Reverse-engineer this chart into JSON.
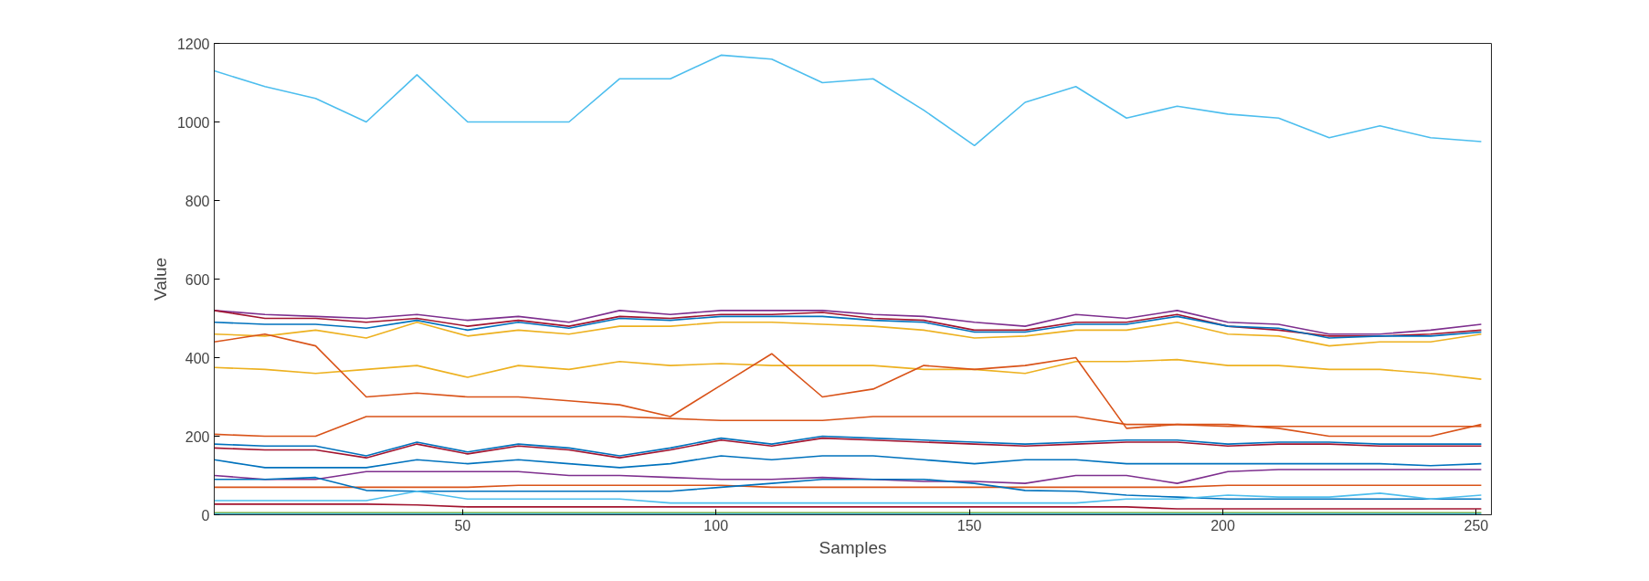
{
  "chart_data": {
    "type": "line",
    "xlabel": "Samples",
    "ylabel": "Value",
    "x": [
      1,
      11,
      21,
      31,
      41,
      51,
      61,
      71,
      81,
      91,
      101,
      111,
      121,
      131,
      141,
      151,
      161,
      171,
      181,
      191,
      201,
      211,
      221,
      231,
      241,
      251
    ],
    "xlim": [
      1,
      253
    ],
    "ylim": [
      0,
      1200
    ],
    "xticks": [
      50,
      100,
      150,
      200,
      250
    ],
    "yticks": [
      0,
      200,
      400,
      600,
      800,
      1000,
      1200
    ],
    "grid": false,
    "line_style": "solid",
    "marker": "none",
    "series": [
      {
        "color": "#4dbeee",
        "values": [
          1130,
          1090,
          1060,
          1000,
          1120,
          1000,
          1000,
          1000,
          1110,
          1110,
          1170,
          1160,
          1100,
          1110,
          1030,
          940,
          1050,
          1090,
          1010,
          1040,
          1020,
          1010,
          960,
          990,
          960,
          950
        ]
      },
      {
        "color": "#7e2f8e",
        "values": [
          520,
          510,
          505,
          500,
          510,
          495,
          505,
          490,
          520,
          510,
          520,
          520,
          520,
          510,
          505,
          490,
          480,
          510,
          500,
          520,
          490,
          485,
          460,
          460,
          470,
          485
        ]
      },
      {
        "color": "#a2142f",
        "values": [
          520,
          500,
          500,
          490,
          500,
          480,
          495,
          480,
          505,
          500,
          510,
          510,
          515,
          500,
          495,
          470,
          470,
          490,
          490,
          510,
          480,
          470,
          455,
          455,
          460,
          470
        ]
      },
      {
        "color": "#0072bd",
        "values": [
          490,
          485,
          485,
          475,
          495,
          470,
          490,
          475,
          500,
          495,
          505,
          505,
          505,
          495,
          490,
          465,
          465,
          485,
          485,
          505,
          480,
          475,
          450,
          455,
          455,
          465
        ]
      },
      {
        "color": "#edb120",
        "values": [
          460,
          455,
          470,
          450,
          490,
          455,
          470,
          460,
          480,
          480,
          490,
          490,
          485,
          480,
          470,
          450,
          455,
          470,
          470,
          490,
          460,
          455,
          430,
          440,
          440,
          460
        ]
      },
      {
        "color": "#edb120",
        "values": [
          375,
          370,
          360,
          370,
          380,
          350,
          380,
          370,
          390,
          380,
          385,
          380,
          380,
          380,
          370,
          370,
          360,
          390,
          390,
          395,
          380,
          380,
          370,
          370,
          360,
          345
        ]
      },
      {
        "color": "#d95319",
        "values": [
          440,
          460,
          430,
          300,
          310,
          300,
          300,
          290,
          280,
          250,
          330,
          410,
          300,
          320,
          380,
          370,
          380,
          400,
          220,
          230,
          230,
          220,
          200,
          200,
          200,
          230
        ]
      },
      {
        "color": "#d95319",
        "values": [
          205,
          200,
          200,
          250,
          250,
          250,
          250,
          250,
          250,
          245,
          240,
          240,
          240,
          250,
          250,
          250,
          250,
          250,
          230,
          230,
          225,
          225,
          225,
          225,
          225,
          225
        ]
      },
      {
        "color": "#0072bd",
        "values": [
          180,
          175,
          175,
          150,
          185,
          160,
          180,
          170,
          150,
          170,
          195,
          180,
          200,
          195,
          190,
          185,
          180,
          185,
          190,
          190,
          180,
          185,
          185,
          180,
          180,
          180
        ]
      },
      {
        "color": "#a2142f",
        "values": [
          170,
          165,
          165,
          145,
          180,
          155,
          175,
          165,
          145,
          165,
          190,
          175,
          195,
          190,
          185,
          180,
          175,
          180,
          185,
          185,
          175,
          180,
          180,
          175,
          175,
          175
        ]
      },
      {
        "color": "#0072bd",
        "values": [
          140,
          120,
          120,
          120,
          140,
          130,
          140,
          130,
          120,
          130,
          150,
          140,
          150,
          150,
          140,
          130,
          140,
          140,
          130,
          130,
          130,
          130,
          130,
          130,
          125,
          130
        ]
      },
      {
        "color": "#7e2f8e",
        "values": [
          100,
          90,
          90,
          110,
          110,
          110,
          110,
          100,
          100,
          95,
          90,
          90,
          95,
          90,
          85,
          85,
          80,
          100,
          100,
          80,
          110,
          115,
          115,
          115,
          115,
          115
        ]
      },
      {
        "color": "#d95319",
        "values": [
          70,
          70,
          70,
          70,
          70,
          70,
          75,
          75,
          75,
          75,
          75,
          70,
          70,
          70,
          70,
          70,
          70,
          70,
          70,
          70,
          75,
          75,
          75,
          75,
          75,
          75
        ]
      },
      {
        "color": "#0072bd",
        "values": [
          90,
          90,
          95,
          62,
          60,
          60,
          60,
          60,
          60,
          60,
          70,
          80,
          90,
          90,
          90,
          80,
          62,
          60,
          50,
          45,
          40,
          40,
          40,
          40,
          40,
          40
        ]
      },
      {
        "color": "#4dbeee",
        "values": [
          36,
          36,
          36,
          36,
          60,
          40,
          40,
          40,
          40,
          30,
          30,
          30,
          30,
          30,
          30,
          30,
          30,
          30,
          40,
          40,
          50,
          45,
          45,
          55,
          40,
          50
        ]
      },
      {
        "color": "#a2142f",
        "values": [
          27,
          27,
          27,
          27,
          25,
          20,
          20,
          20,
          20,
          20,
          20,
          20,
          20,
          20,
          20,
          20,
          20,
          20,
          20,
          15,
          15,
          15,
          15,
          15,
          15,
          15
        ]
      },
      {
        "color": "#77ac30",
        "values": [
          5,
          5,
          5,
          5,
          5,
          5,
          5,
          5,
          5,
          5,
          5,
          5,
          5,
          5,
          5,
          5,
          5,
          5,
          5,
          5,
          5,
          5,
          5,
          5,
          5,
          5
        ]
      },
      {
        "color": "#4dbeee",
        "values": [
          2,
          2,
          2,
          2,
          2,
          2,
          2,
          2,
          2,
          2,
          2,
          2,
          2,
          2,
          2,
          2,
          2,
          2,
          2,
          2,
          2,
          2,
          2,
          2,
          2,
          2
        ]
      }
    ]
  }
}
